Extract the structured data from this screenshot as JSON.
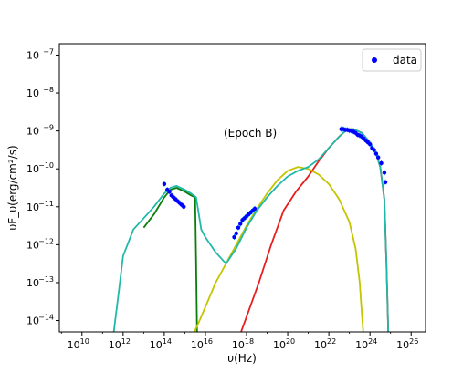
{
  "chart_data": {
    "type": "line",
    "title": "",
    "annotation": "(Epoch B)",
    "xlabel": "υ(Hz)",
    "ylabel": "υF_υ(erg/cm²/s)",
    "xscale": "log",
    "yscale": "log",
    "xlim_log10": [
      8.9,
      26.7
    ],
    "ylim_log10": [
      -14.3,
      -6.7
    ],
    "x_ticks": [
      {
        "exp": 10,
        "label": "10",
        "sup": "10"
      },
      {
        "exp": 12,
        "label": "10",
        "sup": "12"
      },
      {
        "exp": 14,
        "label": "10",
        "sup": "14"
      },
      {
        "exp": 16,
        "label": "10",
        "sup": "16"
      },
      {
        "exp": 18,
        "label": "10",
        "sup": "18"
      },
      {
        "exp": 20,
        "label": "10",
        "sup": "20"
      },
      {
        "exp": 22,
        "label": "10",
        "sup": "22"
      },
      {
        "exp": 24,
        "label": "10",
        "sup": "24"
      },
      {
        "exp": 26,
        "label": "10",
        "sup": "26"
      }
    ],
    "y_ticks": [
      {
        "exp": -14,
        "label": "10",
        "sup": "−14"
      },
      {
        "exp": -13,
        "label": "10",
        "sup": "−13"
      },
      {
        "exp": -12,
        "label": "10",
        "sup": "−12"
      },
      {
        "exp": -11,
        "label": "10",
        "sup": "−11"
      },
      {
        "exp": -10,
        "label": "10",
        "sup": "−10"
      },
      {
        "exp": -9,
        "label": "10",
        "sup": "−9"
      },
      {
        "exp": -8,
        "label": "10",
        "sup": "−8"
      },
      {
        "exp": -7,
        "label": "10",
        "sup": "−7"
      }
    ],
    "legend": {
      "placement": "top-right",
      "entries": [
        {
          "label": "data",
          "color": "#0000ff",
          "marker": "dot"
        }
      ]
    },
    "grid": false,
    "series": [
      {
        "color": "#0b7d0b",
        "log10_x": [
          13.0,
          13.5,
          14.0,
          14.3,
          14.6,
          15.0,
          15.3,
          15.5,
          15.55,
          15.6
        ],
        "log10_y": [
          -11.55,
          -11.2,
          -10.75,
          -10.55,
          -10.5,
          -10.6,
          -10.7,
          -10.75,
          -12.5,
          -14.5
        ]
      },
      {
        "color": "#e81e1e",
        "log10_x": [
          17.6,
          18.0,
          18.6,
          19.2,
          19.8,
          20.4,
          21.0,
          21.5,
          22.0,
          22.5,
          22.9,
          23.2,
          23.6,
          24.0,
          24.3,
          24.5,
          24.7,
          24.8,
          24.9
        ],
        "log10_y": [
          -14.5,
          -13.9,
          -13.0,
          -12.0,
          -11.1,
          -10.6,
          -10.2,
          -9.8,
          -9.45,
          -9.15,
          -8.95,
          -8.95,
          -9.05,
          -9.3,
          -9.6,
          -9.95,
          -10.8,
          -12.5,
          -14.5
        ]
      },
      {
        "color": "#c4c400",
        "log10_x": [
          15.3,
          15.8,
          16.5,
          17.0,
          17.5,
          18.0,
          18.5,
          19.0,
          19.5,
          20.0,
          20.5,
          21.0,
          21.5,
          22.0,
          22.5,
          23.0,
          23.3,
          23.5,
          23.6,
          23.7
        ],
        "log10_y": [
          -14.5,
          -13.9,
          -13.0,
          -12.5,
          -12.0,
          -11.5,
          -11.05,
          -10.65,
          -10.3,
          -10.05,
          -9.95,
          -10.0,
          -10.15,
          -10.4,
          -10.8,
          -11.4,
          -12.1,
          -13.0,
          -13.8,
          -14.5
        ]
      },
      {
        "color": "#20b8a8",
        "log10_x": [
          11.5,
          11.8,
          12.0,
          12.5,
          13.0,
          13.5,
          14.0,
          14.3,
          14.6,
          15.0,
          15.3,
          15.55,
          15.8,
          16.0,
          16.5,
          17.0,
          17.5,
          18.0,
          18.5,
          19.0,
          19.5,
          20.0,
          20.5,
          21.0,
          21.5,
          22.0,
          22.5,
          22.9,
          23.2,
          23.6,
          24.0,
          24.3,
          24.5,
          24.7,
          24.8,
          24.9
        ],
        "log10_y": [
          -14.5,
          -13.2,
          -12.3,
          -11.6,
          -11.3,
          -11.0,
          -10.65,
          -10.5,
          -10.45,
          -10.55,
          -10.65,
          -10.75,
          -11.6,
          -11.8,
          -12.2,
          -12.5,
          -12.1,
          -11.55,
          -11.1,
          -10.75,
          -10.45,
          -10.2,
          -10.05,
          -9.95,
          -9.75,
          -9.45,
          -9.15,
          -8.95,
          -8.95,
          -9.05,
          -9.3,
          -9.6,
          -9.95,
          -10.8,
          -12.5,
          -14.5
        ]
      }
    ],
    "data_points": {
      "color": "#0000ff",
      "error_color": "#00bfff",
      "log10_x": [
        14.0,
        14.15,
        14.25,
        14.35,
        14.45,
        14.55,
        14.65,
        14.75,
        14.85,
        14.95,
        17.4,
        17.5,
        17.6,
        17.7,
        17.8,
        17.9,
        18.0,
        18.1,
        18.2,
        18.3,
        18.4,
        22.6,
        22.7,
        22.8,
        22.9,
        23.0,
        23.1,
        23.2,
        23.3,
        23.4,
        23.5,
        23.6,
        23.7,
        23.8,
        23.9,
        24.0,
        24.1,
        24.2,
        24.3,
        24.4,
        24.55,
        24.7,
        24.75
      ],
      "log10_y": [
        -10.4,
        -10.55,
        -10.6,
        -10.7,
        -10.75,
        -10.8,
        -10.85,
        -10.9,
        -10.95,
        -11.0,
        -11.8,
        -11.7,
        -11.55,
        -11.45,
        -11.35,
        -11.3,
        -11.25,
        -11.2,
        -11.15,
        -11.1,
        -11.05,
        -8.95,
        -8.95,
        -8.97,
        -8.97,
        -8.99,
        -9.0,
        -9.02,
        -9.05,
        -9.1,
        -9.12,
        -9.15,
        -9.2,
        -9.25,
        -9.3,
        -9.35,
        -9.45,
        -9.5,
        -9.6,
        -9.7,
        -9.85,
        -10.1,
        -10.35
      ]
    }
  }
}
